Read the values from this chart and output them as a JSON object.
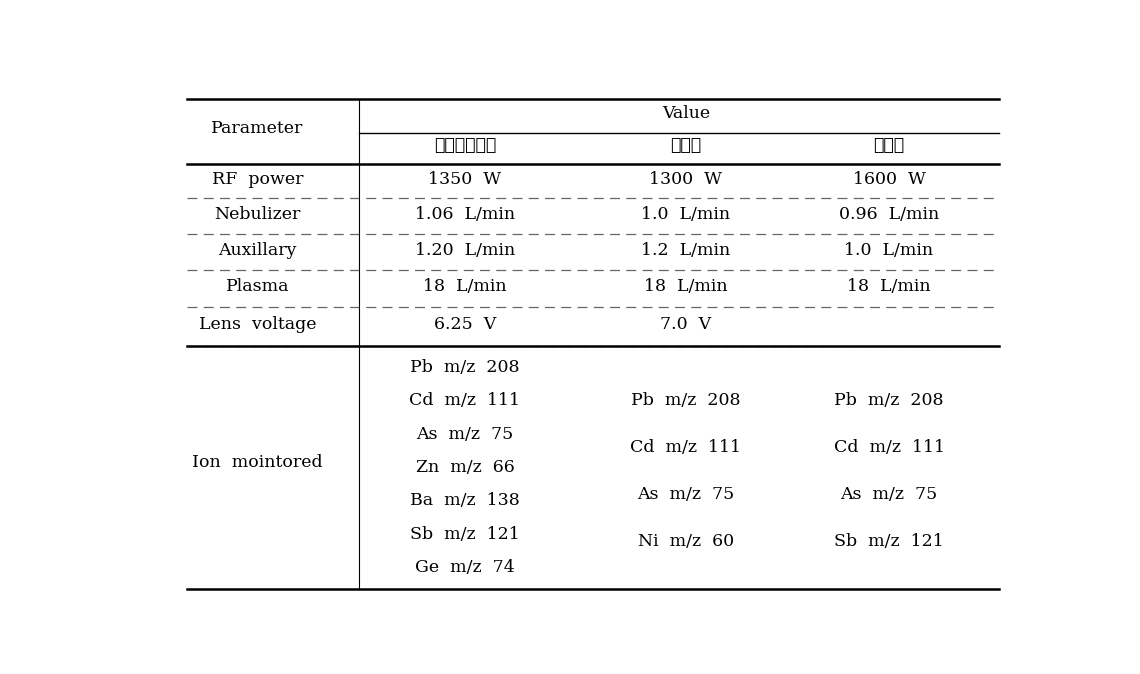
{
  "title": "Value",
  "col_header_param": "Parameter",
  "col_header_2": "첨가물포장과",
  "col_header_3": "대전청",
  "col_header_4": "경인청",
  "row_labels": [
    "RF  power",
    "Nebulizer",
    "Auxillary",
    "Plasma",
    "Lens  voltage",
    "Ion  mointored"
  ],
  "row_vals1": [
    "1350  W",
    "1.06  L/min",
    "1.20  L/min",
    "18  L/min",
    "6.25  V"
  ],
  "row_vals2": [
    "1300  W",
    "1.0  L/min",
    "1.2  L/min",
    "18  L/min",
    "7.0  V"
  ],
  "row_vals3": [
    "1600  W",
    "0.96  L/min",
    "1.0  L/min",
    "18  L/min",
    ""
  ],
  "ion_col1": [
    "Pb  m/z  208",
    "Cd  m/z  111",
    "As  m/z  75",
    "Zn  m/z  66",
    "Ba  m/z  138",
    "Sb  m/z  121",
    "Ge  m/z  74"
  ],
  "ion_col2": [
    "Pb  m/z  208",
    "Cd  m/z  111",
    "As  m/z  75",
    "Ni  m/z  60"
  ],
  "ion_col3": [
    "Pb  m/z  208",
    "Cd  m/z  111",
    "As  m/z  75",
    "Sb  m/z  121"
  ],
  "bg_color": "#ffffff",
  "text_color": "#000000",
  "line_solid": "#000000",
  "line_dashed": "#666666",
  "font_size": 12.5
}
